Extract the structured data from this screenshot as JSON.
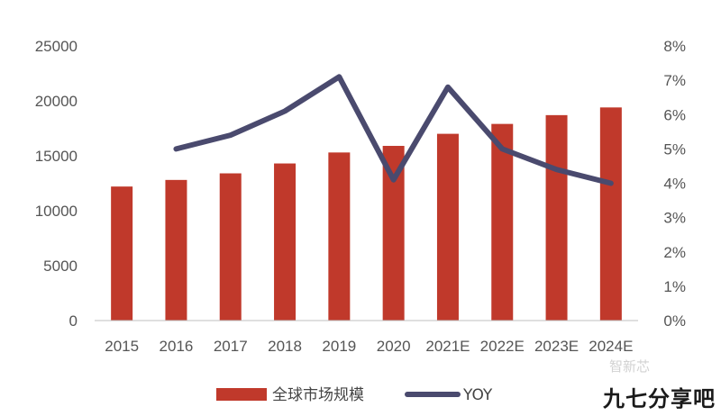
{
  "chart_data": {
    "type": "bar",
    "categories": [
      "2015",
      "2016",
      "2017",
      "2018",
      "2019",
      "2020",
      "2021E",
      "2022E",
      "2023E",
      "2024E"
    ],
    "series": [
      {
        "name": "全球市场规模",
        "type": "bar",
        "axis": "left",
        "values": [
          12200,
          12800,
          13400,
          14300,
          15300,
          15900,
          17000,
          17900,
          18700,
          19400
        ],
        "color": "#C0392B"
      },
      {
        "name": "YOY",
        "type": "line",
        "axis": "right",
        "values": [
          null,
          0.05,
          0.054,
          0.061,
          0.071,
          0.041,
          0.068,
          0.05,
          0.044,
          0.04
        ],
        "color": "#4A4A6E"
      }
    ],
    "y_left": {
      "min": 0,
      "max": 25000,
      "ticks": [
        "0",
        "5000",
        "10000",
        "15000",
        "20000",
        "25000"
      ]
    },
    "y_right": {
      "min": 0,
      "max": 0.08,
      "ticks": [
        "0%",
        "1%",
        "2%",
        "3%",
        "4%",
        "5%",
        "6%",
        "7%",
        "8%"
      ]
    },
    "grid": false,
    "legend_position": "bottom"
  },
  "watermark": {
    "main": "九七分享吧",
    "faint": "智新芯"
  }
}
